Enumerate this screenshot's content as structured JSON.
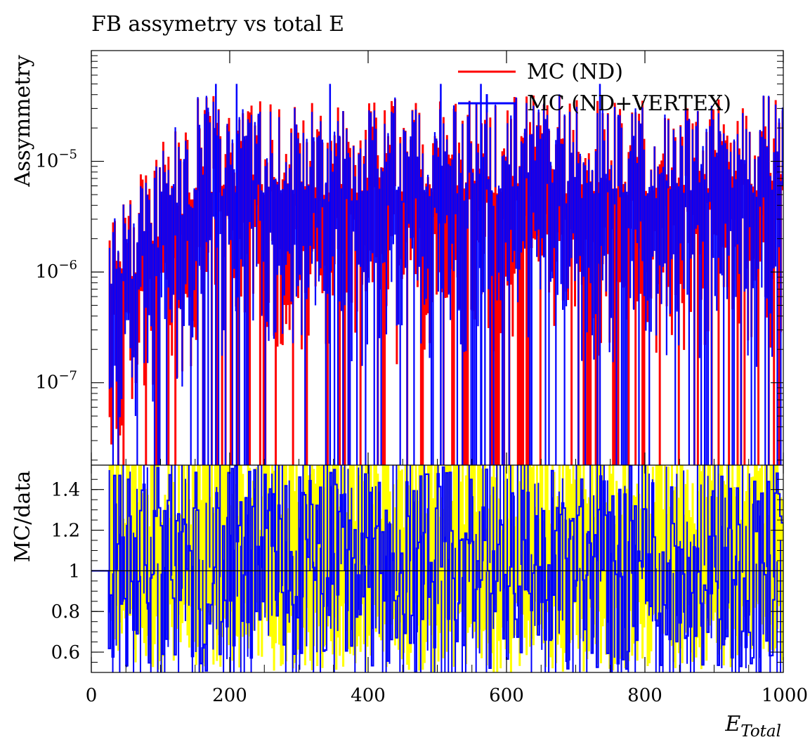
{
  "chart_data": [
    {
      "panel": "top",
      "type": "histogram",
      "title": "FB assymetry vs total E",
      "xlabel": "",
      "ylabel": "Assymmetry",
      "xlim": [
        0,
        1000
      ],
      "ylim": [
        1.8e-08,
        0.0001
      ],
      "y_scale": "log",
      "y_tick_labels": [
        {
          "base": "10",
          "exp": "−5",
          "value": 1e-05
        },
        {
          "base": "10",
          "exp": "−6",
          "value": 1e-06
        },
        {
          "base": "10",
          "exp": "−7",
          "value": 1e-07
        }
      ],
      "legend": {
        "position": "top-right",
        "entries": [
          {
            "label": "MC (ND)",
            "color": "#ff0000"
          },
          {
            "label": "MC (ND+VERTEX)",
            "color": "#0000ff"
          }
        ]
      },
      "series": [
        {
          "name": "MC (ND)",
          "color": "#ff0000",
          "x_start": 25,
          "x_end": 1000,
          "approx_level": 1.2e-05,
          "note_values": [
            2e-06,
            1e-05,
            2.5e-05,
            4.5e-05
          ]
        },
        {
          "name": "MC (ND+VERTEX)",
          "color": "#0000ff",
          "x_start": 25,
          "x_end": 1000,
          "approx_level": 1.1e-05,
          "note_values": [
            1.5e-06,
            1e-05,
            2e-05,
            5.5e-05
          ]
        }
      ]
    },
    {
      "panel": "bottom",
      "type": "ratio",
      "xlabel": "E_Total",
      "xlabel_main": "E",
      "xlabel_sub": "Total",
      "ylabel": "MC/data",
      "xlim": [
        0,
        1000
      ],
      "ylim": [
        0.5,
        1.52
      ],
      "x_ticks": [
        0,
        200,
        400,
        600,
        800,
        1000
      ],
      "x_tick_labels": [
        "0",
        "200",
        "400",
        "600",
        "800",
        "1000"
      ],
      "y_ticks": [
        0.6,
        0.8,
        1,
        1.2,
        1.4
      ],
      "y_tick_labels": [
        "0.6",
        "0.8",
        "1",
        "1.2",
        "1.4"
      ],
      "reference_line": 1,
      "band_color": "#ffff00",
      "line_color": "#0000ff"
    }
  ]
}
